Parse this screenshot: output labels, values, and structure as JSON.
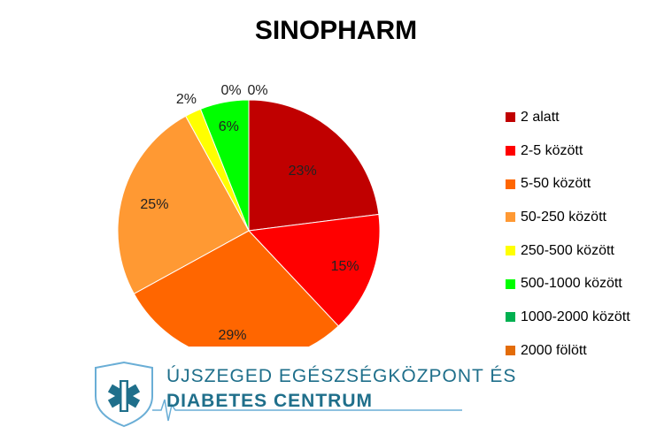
{
  "chart_data": {
    "type": "pie",
    "title": "SINOPHARM",
    "categories": [
      "2 alatt",
      "2-5 között",
      "5-50 között",
      "50-250 között",
      "250-500 között",
      "500-1000 között",
      "1000-2000 között",
      "2000 fölött"
    ],
    "values": [
      23,
      15,
      29,
      25,
      2,
      6,
      0,
      0
    ],
    "labels": [
      "23%",
      "15%",
      "29%",
      "25%",
      "2%",
      "6%",
      "0%",
      "0%"
    ],
    "colors": [
      "#c00000",
      "#ff0000",
      "#ff6600",
      "#ff9933",
      "#ffff00",
      "#00ff00",
      "#00b050",
      "#e36c09"
    ],
    "legend_position": "right"
  },
  "logo": {
    "line1": "ÚJSZEGED EGÉSZSÉGKÖZPONT ÉS",
    "line2": "DIABETES CENTRUM"
  }
}
